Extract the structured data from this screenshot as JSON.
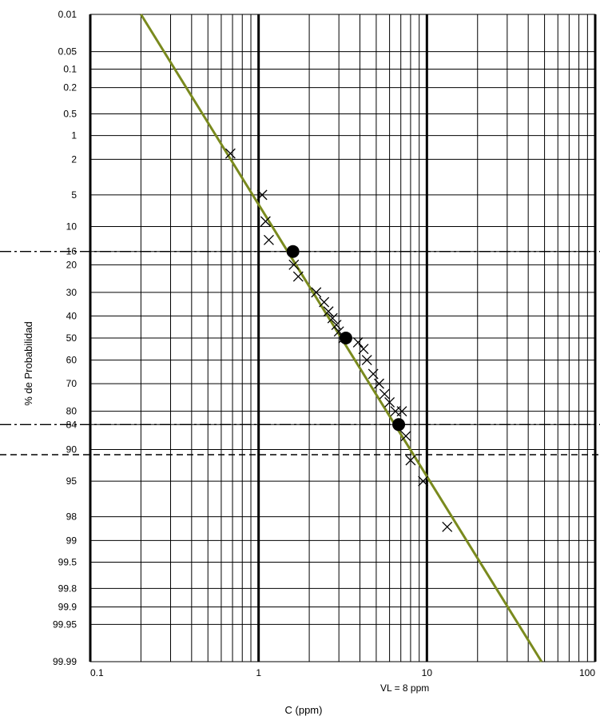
{
  "chart_data": {
    "type": "scatter",
    "title": "",
    "xlabel": "C (ppm)",
    "ylabel": "% de Probabilidad",
    "x_scale": "log",
    "y_scale": "probability",
    "xlim": [
      0.1,
      100
    ],
    "ylim": [
      0.01,
      99.99
    ],
    "grid": true,
    "x_ticks": [
      {
        "value": 0.1,
        "label": "0.1"
      },
      {
        "value": 1,
        "label": "1"
      },
      {
        "value": 10,
        "label": "10"
      },
      {
        "value": 100,
        "label": "100"
      }
    ],
    "y_ticks": [
      {
        "value": 0.01,
        "label": "0.01"
      },
      {
        "value": 0.05,
        "label": "0.05"
      },
      {
        "value": 0.1,
        "label": "0.1"
      },
      {
        "value": 0.2,
        "label": "0.2"
      },
      {
        "value": 0.5,
        "label": "0.5"
      },
      {
        "value": 1,
        "label": "1"
      },
      {
        "value": 2,
        "label": "2"
      },
      {
        "value": 5,
        "label": "5"
      },
      {
        "value": 10,
        "label": "10"
      },
      {
        "value": 16,
        "label": "16"
      },
      {
        "value": 20,
        "label": "20"
      },
      {
        "value": 30,
        "label": "30"
      },
      {
        "value": 40,
        "label": "40"
      },
      {
        "value": 50,
        "label": "50"
      },
      {
        "value": 60,
        "label": "60"
      },
      {
        "value": 70,
        "label": "70"
      },
      {
        "value": 80,
        "label": "80"
      },
      {
        "value": 84,
        "label": "84"
      },
      {
        "value": 90,
        "label": "90"
      },
      {
        "value": 95,
        "label": "95"
      },
      {
        "value": 98,
        "label": "98"
      },
      {
        "value": 99,
        "label": "99"
      },
      {
        "value": 99.5,
        "label": "99.5"
      },
      {
        "value": 99.8,
        "label": "99.8"
      },
      {
        "value": 99.9,
        "label": "99.9"
      },
      {
        "value": 99.95,
        "label": "99.95"
      },
      {
        "value": 99.99,
        "label": "99.99"
      }
    ],
    "fit_line": {
      "color": "#7a8a1e",
      "points": [
        [
          0.2,
          0.01
        ],
        [
          48,
          99.99
        ]
      ]
    },
    "reference_lines": [
      {
        "y": 16,
        "style": "dash-dot"
      },
      {
        "y": 84,
        "style": "dash-dot"
      },
      {
        "y": 91,
        "style": "dashed"
      }
    ],
    "observations": {
      "marker": "x",
      "points": [
        [
          0.68,
          1.7
        ],
        [
          1.05,
          5
        ],
        [
          1.1,
          9
        ],
        [
          1.15,
          13
        ],
        [
          1.62,
          20
        ],
        [
          1.72,
          24
        ],
        [
          2.2,
          30
        ],
        [
          2.45,
          34
        ],
        [
          2.6,
          38
        ],
        [
          2.75,
          41
        ],
        [
          2.9,
          44
        ],
        [
          3.0,
          47
        ],
        [
          3.2,
          50
        ],
        [
          3.9,
          52
        ],
        [
          4.2,
          55
        ],
        [
          4.4,
          60
        ],
        [
          4.8,
          66
        ],
        [
          5.2,
          70
        ],
        [
          5.6,
          74
        ],
        [
          6.0,
          77
        ],
        [
          6.5,
          80
        ],
        [
          7.1,
          80
        ],
        [
          7.5,
          87
        ],
        [
          8.0,
          92
        ],
        [
          9.5,
          95
        ],
        [
          13.2,
          98.5
        ]
      ]
    },
    "key_points": {
      "marker": "filled-circle",
      "points": [
        [
          1.6,
          16
        ],
        [
          3.3,
          50
        ],
        [
          6.8,
          84
        ]
      ]
    },
    "annotation": {
      "text": "VL = 8 ppm"
    }
  }
}
